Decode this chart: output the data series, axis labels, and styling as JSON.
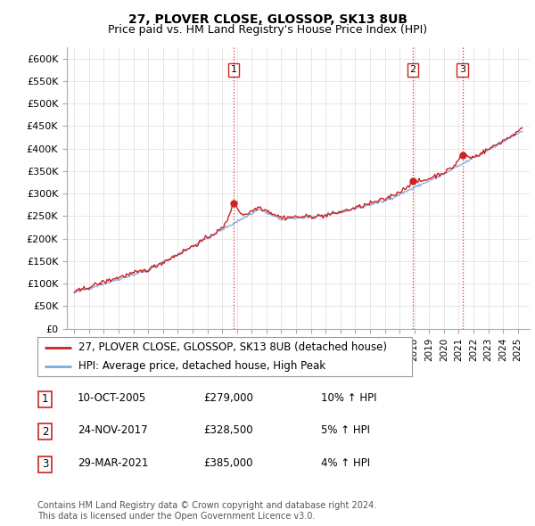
{
  "title": "27, PLOVER CLOSE, GLOSSOP, SK13 8UB",
  "subtitle": "Price paid vs. HM Land Registry's House Price Index (HPI)",
  "ylim": [
    0,
    620000
  ],
  "xlim_start": 1994.5,
  "xlim_end": 2025.8,
  "sale_dates": [
    2005.78,
    2017.9,
    2021.25
  ],
  "sale_prices": [
    279000,
    328500,
    385000
  ],
  "sale_labels": [
    "1",
    "2",
    "3"
  ],
  "vline_color": "#cc0000",
  "vline_style": ":",
  "hpi_line_color": "#7aaadd",
  "price_line_color": "#cc2222",
  "grid_color": "#dddddd",
  "background_color": "#ffffff",
  "legend_entries": [
    "27, PLOVER CLOSE, GLOSSOP, SK13 8UB (detached house)",
    "HPI: Average price, detached house, High Peak"
  ],
  "table_rows": [
    {
      "num": "1",
      "date": "10-OCT-2005",
      "price": "£279,000",
      "change": "10% ↑ HPI"
    },
    {
      "num": "2",
      "date": "24-NOV-2017",
      "price": "£328,500",
      "change": "5% ↑ HPI"
    },
    {
      "num": "3",
      "date": "29-MAR-2021",
      "price": "£385,000",
      "change": "4% ↑ HPI"
    }
  ],
  "footnote": "Contains HM Land Registry data © Crown copyright and database right 2024.\nThis data is licensed under the Open Government Licence v3.0.",
  "title_fontsize": 10,
  "subtitle_fontsize": 9,
  "tick_fontsize": 8,
  "legend_fontsize": 8.5,
  "table_fontsize": 8.5,
  "footnote_fontsize": 7
}
